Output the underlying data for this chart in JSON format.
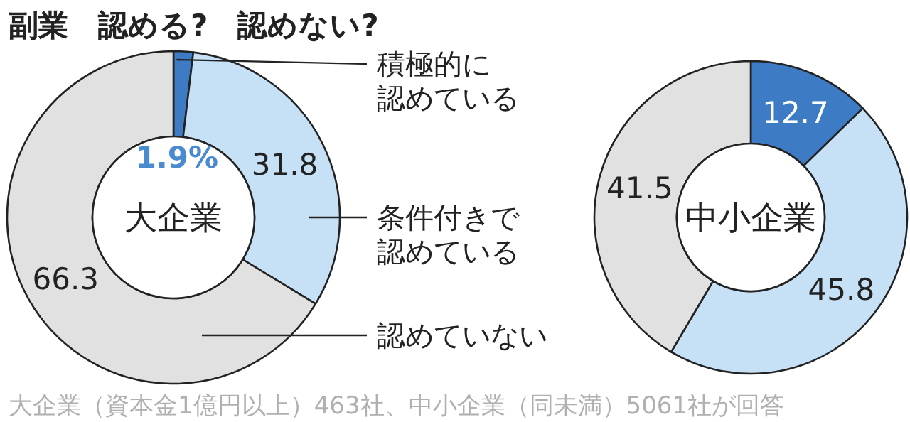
{
  "chart_data": [
    {
      "type": "donut",
      "title": "大企業",
      "categories": [
        "積極的に認めている",
        "条件付きで認めている",
        "認めていない"
      ],
      "values": [
        1.9,
        31.8,
        66.3
      ],
      "colors": [
        "#3d7cc4",
        "#c6e0f5",
        "#e1e1e1"
      ],
      "value_labels": [
        "1.9%",
        "31.8",
        "66.3"
      ]
    },
    {
      "type": "donut",
      "title": "中小企業",
      "categories": [
        null,
        null,
        null
      ],
      "values": [
        12.7,
        45.8,
        41.5
      ],
      "colors": [
        "#3d7cc4",
        "#c6e0f5",
        "#e1e1e1"
      ],
      "data_labels": true,
      "annotations": [
        "副業　認める?　認めない?",
        "大企業（資本金1億円以上）463社、中小企業（同未満）5061社が回答"
      ]
    }
  ]
}
